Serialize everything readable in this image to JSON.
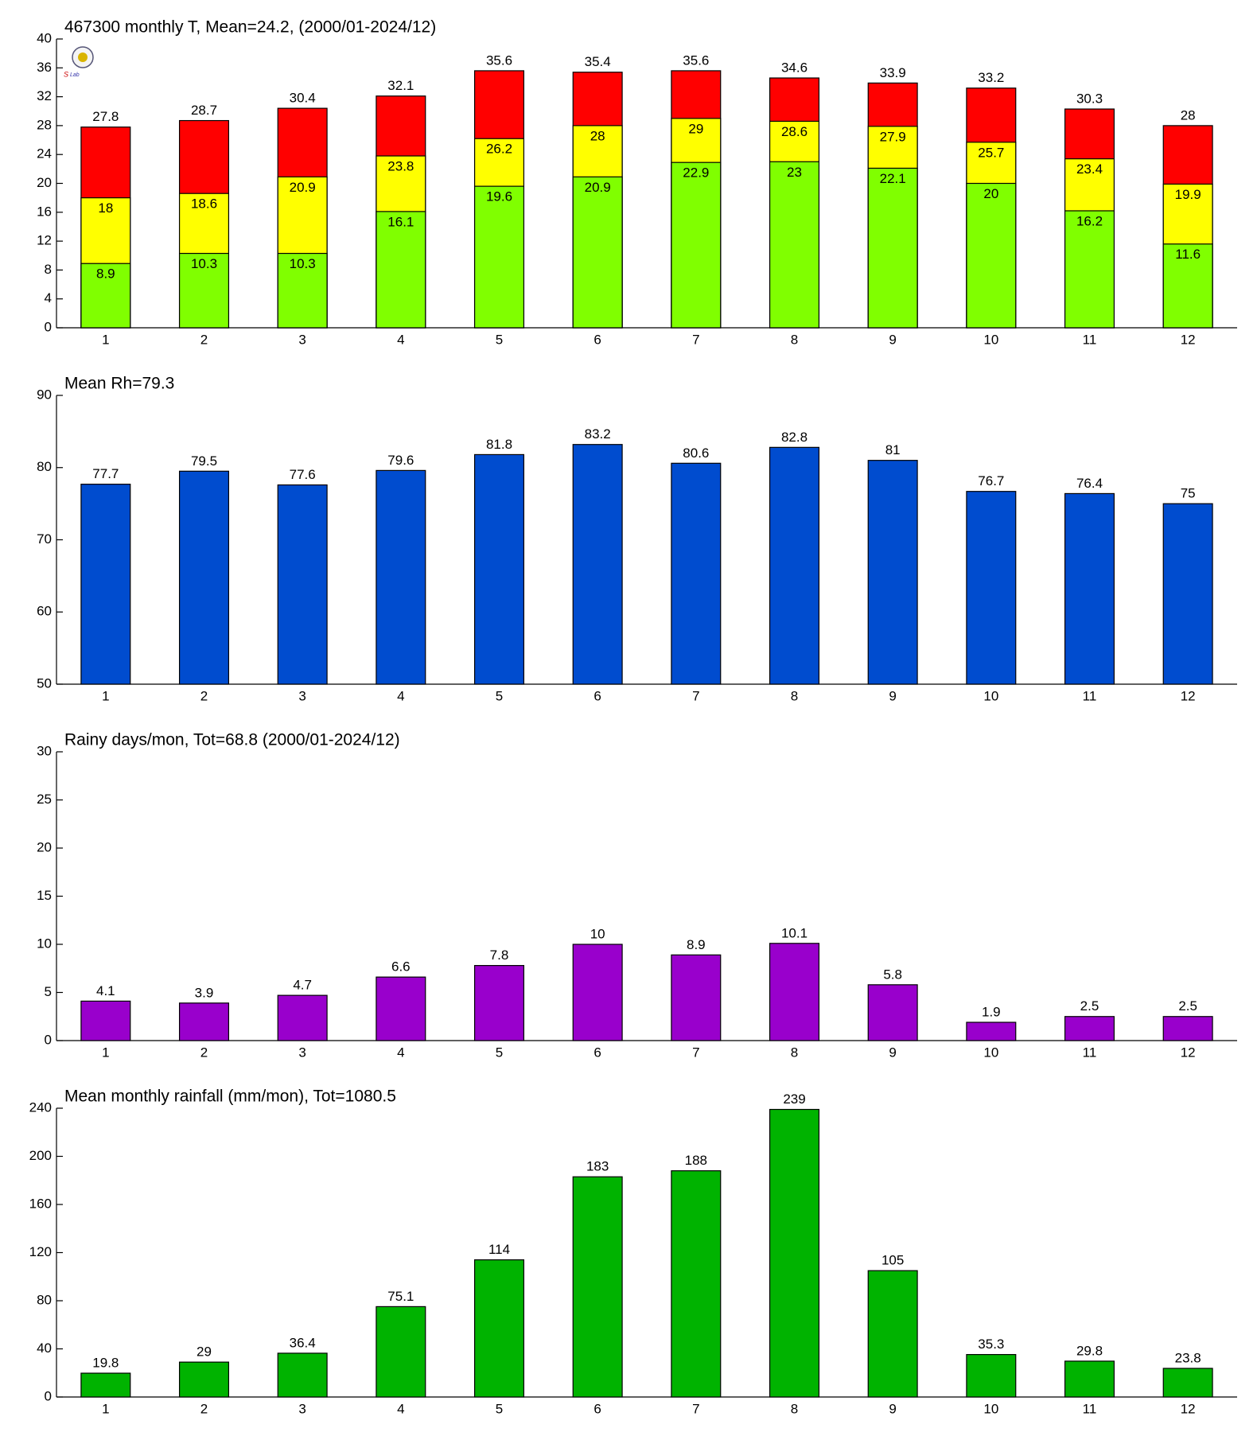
{
  "chart_data": [
    {
      "type": "bar",
      "barmode": "overlay",
      "title": "467300 monthly T, Mean=24.2, (2000/01-2024/12)",
      "categories": [
        "1",
        "2",
        "3",
        "4",
        "5",
        "6",
        "7",
        "8",
        "9",
        "10",
        "11",
        "12"
      ],
      "series": [
        {
          "color": "#ff0000",
          "values": [
            27.8,
            28.7,
            30.4,
            32.1,
            35.6,
            35.4,
            35.6,
            34.6,
            33.9,
            33.2,
            30.3,
            28
          ]
        },
        {
          "color": "#ffff00",
          "values": [
            18,
            18.6,
            20.9,
            23.8,
            26.2,
            28,
            29,
            28.6,
            27.9,
            25.7,
            23.4,
            19.9
          ]
        },
        {
          "color": "#80ff00",
          "values": [
            8.9,
            10.3,
            10.3,
            16.1,
            19.6,
            20.9,
            22.9,
            23,
            22.1,
            20,
            16.2,
            11.6
          ]
        }
      ],
      "ylim": [
        0,
        40
      ],
      "yticks": [
        0,
        4,
        8,
        12,
        16,
        20,
        24,
        28,
        32,
        36,
        40
      ]
    },
    {
      "type": "bar",
      "title": "Mean Rh=79.3",
      "categories": [
        "1",
        "2",
        "3",
        "4",
        "5",
        "6",
        "7",
        "8",
        "9",
        "10",
        "11",
        "12"
      ],
      "series": [
        {
          "color": "#004ccf",
          "values": [
            77.7,
            79.5,
            77.6,
            79.6,
            81.8,
            83.2,
            80.6,
            82.8,
            81,
            76.7,
            76.4,
            75
          ]
        }
      ],
      "ylim": [
        50,
        90
      ],
      "yticks": [
        50,
        60,
        70,
        80,
        90
      ]
    },
    {
      "type": "bar",
      "title": "Rainy days/mon, Tot=68.8 (2000/01-2024/12)",
      "categories": [
        "1",
        "2",
        "3",
        "4",
        "5",
        "6",
        "7",
        "8",
        "9",
        "10",
        "11",
        "12"
      ],
      "series": [
        {
          "color": "#9900cc",
          "values": [
            4.1,
            3.9,
            4.7,
            6.6,
            7.8,
            10,
            8.9,
            10.1,
            5.8,
            1.9,
            2.5,
            2.5
          ]
        }
      ],
      "ylim": [
        0,
        30
      ],
      "yticks": [
        0,
        5,
        10,
        15,
        20,
        25,
        30
      ]
    },
    {
      "type": "bar",
      "title": "Mean monthly rainfall (mm/mon), Tot=1080.5",
      "categories": [
        "1",
        "2",
        "3",
        "4",
        "5",
        "6",
        "7",
        "8",
        "9",
        "10",
        "11",
        "12"
      ],
      "series": [
        {
          "color": "#00b300",
          "values": [
            19.8,
            29,
            36.4,
            75.1,
            114,
            183,
            188,
            239,
            105,
            35.3,
            29.8,
            23.8
          ]
        }
      ],
      "ylim": [
        0,
        240
      ],
      "yticks": [
        0,
        40,
        80,
        120,
        160,
        200,
        240
      ]
    }
  ]
}
